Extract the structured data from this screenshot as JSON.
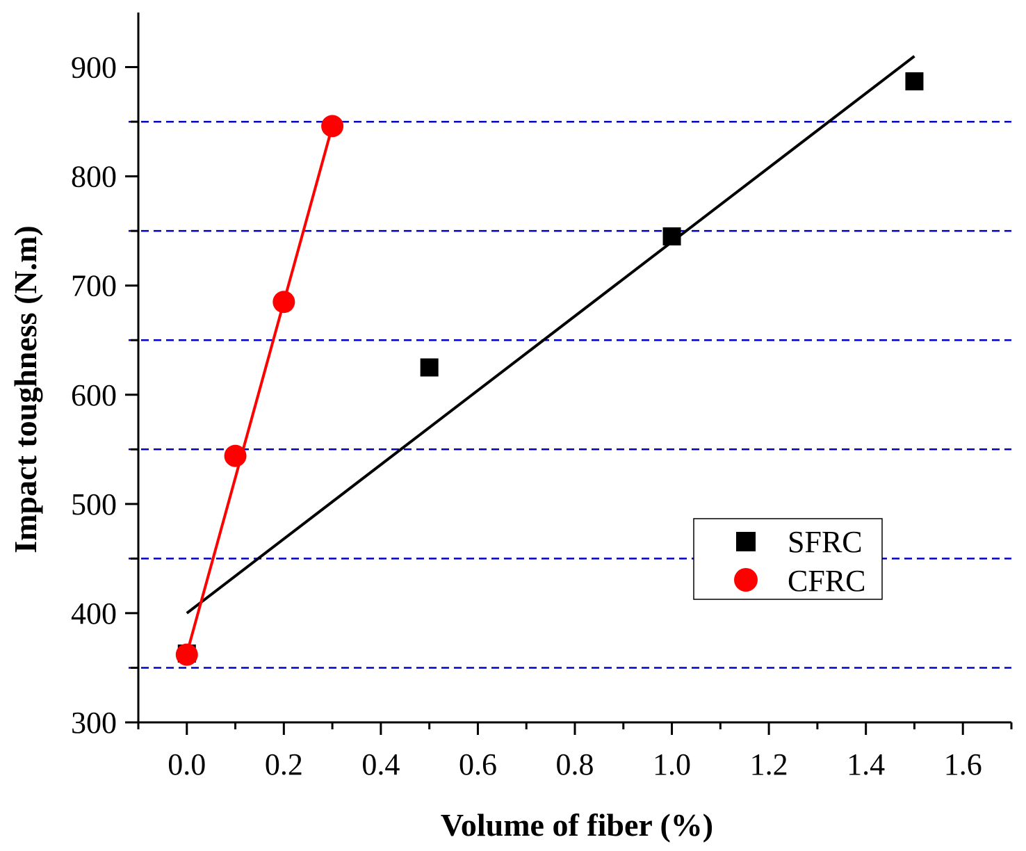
{
  "chart_data": {
    "type": "scatter",
    "title": "",
    "xlabel": "Volume of fiber (%)",
    "ylabel": "Impact toughness (N.m)",
    "xlim": [
      -0.1,
      1.7
    ],
    "ylim": [
      300,
      950
    ],
    "x_ticks": [
      0.0,
      0.2,
      0.4,
      0.6,
      0.8,
      1.0,
      1.2,
      1.4,
      1.6
    ],
    "x_tick_labels": [
      "0.0",
      "0.2",
      "0.4",
      "0.6",
      "0.8",
      "1.0",
      "1.2",
      "1.4",
      "1.6"
    ],
    "x_minor_ticks": [
      -0.1,
      0.1,
      0.3,
      0.5,
      0.7,
      0.9,
      1.1,
      1.3,
      1.5,
      1.7
    ],
    "y_ticks": [
      300,
      400,
      500,
      600,
      700,
      800,
      900
    ],
    "y_tick_labels": [
      "300",
      "400",
      "500",
      "600",
      "700",
      "800",
      "900"
    ],
    "y_minor_ticks": [
      350,
      450,
      550,
      650,
      750,
      850
    ],
    "reference_lines": {
      "y_values": [
        350,
        450,
        550,
        650,
        750,
        850
      ],
      "color": "#0000cc",
      "style": "dashed"
    },
    "series": [
      {
        "name": "SFRC",
        "marker": "square",
        "color": "#000000",
        "x": [
          0.0,
          0.5,
          1.0,
          1.5
        ],
        "y": [
          363,
          625,
          745,
          887
        ],
        "fit_line": {
          "x": [
            0.0,
            1.5
          ],
          "y": [
            400,
            910
          ],
          "color": "#000000"
        }
      },
      {
        "name": "CFRC",
        "marker": "circle",
        "color": "#ff0000",
        "x": [
          0.0,
          0.1,
          0.2,
          0.3
        ],
        "y": [
          362,
          544,
          685,
          846
        ],
        "fit_line": {
          "x": [
            0.0,
            0.3
          ],
          "y": [
            363,
            846
          ],
          "color": "#ff0000"
        }
      }
    ],
    "legend": {
      "position": "lower-right",
      "entries": [
        "SFRC",
        "CFRC"
      ]
    }
  }
}
